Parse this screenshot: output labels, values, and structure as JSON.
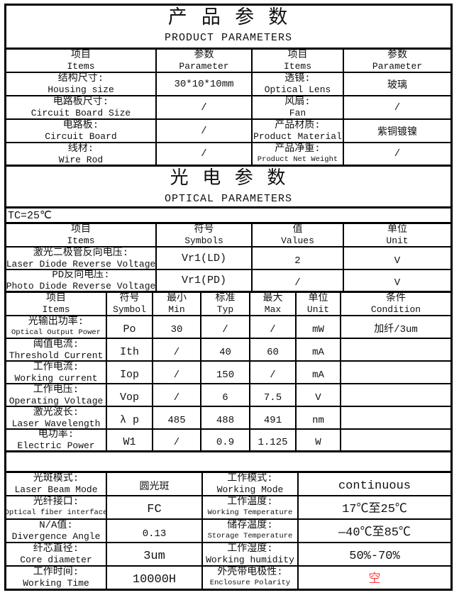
{
  "colors": {
    "value_red": "#ff4040",
    "border": "#000000"
  },
  "product_section": {
    "title_cn": "产 品 参 数",
    "title_en": "PRODUCT PARAMETERS",
    "headers": [
      {
        "cn": "项目",
        "en": "Items"
      },
      {
        "cn": "参数",
        "en": "Parameter"
      },
      {
        "cn": "项目",
        "en": "Items"
      },
      {
        "cn": "参数",
        "en": "Parameter"
      }
    ],
    "rows": [
      {
        "item1_cn": "结构尺寸:",
        "item1_en": "Housing size",
        "val1": "30*10*10mm",
        "item2_cn": "透镜:",
        "item2_en": "Optical Lens",
        "val2": "玻璃"
      },
      {
        "item1_cn": "电路板尺寸:",
        "item1_en": "Circuit Board Size",
        "val1": "/",
        "item2_cn": "风扇:",
        "item2_en": "Fan",
        "val2": "/"
      },
      {
        "item1_cn": "电路板:",
        "item1_en": "Circuit Board",
        "val1": "/",
        "item2_cn": "产品材质:",
        "item2_en": "Product Material",
        "val2": "紫铜镀镍"
      },
      {
        "item1_cn": "线材:",
        "item1_en": "Wire Rod",
        "val1": "/",
        "item2_cn": "产品净重:",
        "item2_en": "Product Net Weight",
        "val2": "/"
      }
    ]
  },
  "optical_section": {
    "title_cn": "光 电 参 数",
    "title_en": "OPTICAL PARAMETERS",
    "condition": "TC=25℃",
    "table1": {
      "headers": [
        {
          "cn": "项目",
          "en": "Items"
        },
        {
          "cn": "符号",
          "en": "Symbols"
        },
        {
          "cn": "值",
          "en": "Values"
        },
        {
          "cn": "单位",
          "en": "Unit"
        }
      ],
      "rows": [
        {
          "item_cn": "激光二极管反向电压:",
          "item_en": "Laser Diode Reverse Voltage",
          "symbol": "Vr1(LD)",
          "value": "2",
          "unit": "V"
        },
        {
          "item_cn": "PD反向电压:",
          "item_en": "Photo Diode Reverse Voltage",
          "symbol": "Vr1(PD)",
          "value": "/",
          "unit": "V"
        }
      ]
    },
    "table2": {
      "headers": [
        {
          "cn": "项目",
          "en": "Items"
        },
        {
          "cn": "符号",
          "en": "Symbol"
        },
        {
          "cn": "最小",
          "en": "Min"
        },
        {
          "cn": "标准",
          "en": "Typ"
        },
        {
          "cn": "最大",
          "en": "Max"
        },
        {
          "cn": "单位",
          "en": "Unit"
        },
        {
          "cn": "条件",
          "en": "Condition"
        }
      ],
      "rows": [
        {
          "item_cn": "光输出功率:",
          "item_en": "Optical Output Power",
          "symbol": "Po",
          "min": "30",
          "typ": "/",
          "max": "/",
          "unit": "mW",
          "condition": "加纤/3um"
        },
        {
          "item_cn": "阈值电流:",
          "item_en": "Threshold Current",
          "symbol": "Ith",
          "min": "/",
          "typ": "40",
          "max": "60",
          "unit": "mA",
          "condition": ""
        },
        {
          "item_cn": "工作电流:",
          "item_en": "Working current",
          "symbol": "Iop",
          "min": "/",
          "typ": "150",
          "max": "/",
          "unit": "mA",
          "condition": ""
        },
        {
          "item_cn": "工作电压:",
          "item_en": "Operating Voltage",
          "symbol": "Vop",
          "min": "/",
          "typ": "6",
          "max": "7.5",
          "unit": "V",
          "condition": ""
        },
        {
          "item_cn": "激光波长:",
          "item_en": "Laser Wavelength",
          "symbol": "λ p",
          "min": "485",
          "typ": "488",
          "max": "491",
          "unit": "nm",
          "condition": ""
        },
        {
          "item_cn": "电功率:",
          "item_en": "Electric Power",
          "symbol": "W1",
          "min": "/",
          "typ": "0.9",
          "max": "1.125",
          "unit": "W",
          "condition": ""
        }
      ]
    }
  },
  "general_section": {
    "rows": [
      {
        "item1_cn": "光斑模式:",
        "item1_en": "Laser Beam Mode",
        "val1": "圆光斑",
        "item2_cn": "工作模式:",
        "item2_en": "Working Mode",
        "val2": "continuous"
      },
      {
        "item1_cn": "光纤接口:",
        "item1_en": "Optical fiber interface",
        "val1": "FC",
        "item2_cn": "工作温度:",
        "item2_en": "Working Temperature",
        "val2": "17℃至25℃"
      },
      {
        "item1_cn": "N/A值:",
        "item1_en": "Divergence Angle",
        "val1": "0.13",
        "item2_cn": "储存温度:",
        "item2_en": "Storage Temperature",
        "val2": "—40℃至85℃"
      },
      {
        "item1_cn": "纤芯直径:",
        "item1_en": "Core diameter",
        "val1": "3um",
        "item2_cn": "工作湿度:",
        "item2_en": "Working humidity",
        "val2": "50%-70%"
      },
      {
        "item1_cn": "工作时间:",
        "item1_en": "Working Time",
        "val1": "10000H",
        "item2_cn": "外壳带电极性:",
        "item2_en": "Enclosure Polarity",
        "val2": "空"
      }
    ]
  }
}
